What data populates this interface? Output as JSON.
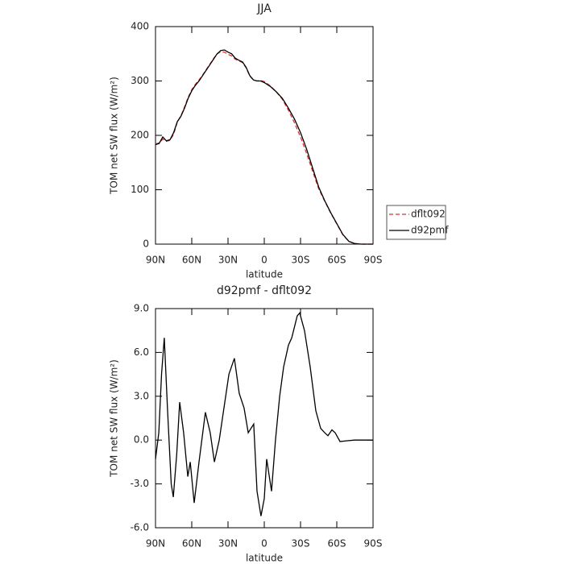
{
  "chart_data": [
    {
      "type": "line",
      "title": "JJA",
      "xlabel": "latitude",
      "ylabel": "TOM net SW flux (W/m²)",
      "x": [
        90,
        87,
        84,
        81,
        78,
        75,
        72,
        69,
        66,
        63,
        60,
        57,
        54,
        51,
        48,
        45,
        42,
        39,
        36,
        33,
        30,
        27,
        24,
        21,
        18,
        15,
        12,
        9,
        6,
        3,
        0,
        -5,
        -10,
        -15,
        -20,
        -25,
        -30,
        -35,
        -40,
        -45,
        -50,
        -55,
        -60,
        -65,
        -70,
        -75,
        -80,
        -85,
        -90
      ],
      "series": [
        {
          "name": "dflt092",
          "color": "#e03030",
          "style": "dashed",
          "values": [
            184,
            186,
            193,
            189,
            191,
            202,
            224,
            236,
            252,
            270,
            284,
            294,
            302,
            311,
            321,
            331,
            341,
            350,
            354,
            353,
            349,
            346,
            340,
            337,
            334,
            324,
            309,
            302,
            300,
            301,
            299,
            291,
            280,
            266,
            246,
            223,
            197,
            167,
            134,
            102,
            79,
            57,
            37,
            17,
            5,
            1,
            0,
            0,
            0
          ]
        },
        {
          "name": "d92pmf",
          "color": "#000000",
          "style": "solid",
          "values": [
            183,
            185,
            197,
            190,
            192,
            205,
            225,
            235,
            250,
            268,
            282,
            292,
            300,
            310,
            320,
            330,
            340,
            350,
            356,
            357,
            353,
            350,
            342,
            338,
            335,
            325,
            310,
            302,
            300,
            300,
            297,
            290,
            280,
            268,
            250,
            230,
            205,
            175,
            140,
            105,
            80,
            58,
            38,
            18,
            5,
            1,
            0,
            0,
            0
          ]
        }
      ],
      "xlim": [
        90,
        -90
      ],
      "xticks": [
        {
          "value": 90,
          "label": "90N"
        },
        {
          "value": 60,
          "label": "60N"
        },
        {
          "value": 30,
          "label": "30N"
        },
        0,
        {
          "value": -30,
          "label": "30S"
        },
        {
          "value": -60,
          "label": "60S"
        },
        {
          "value": -90,
          "label": "90S"
        }
      ],
      "ylim": [
        0,
        400
      ],
      "yticks": [
        0,
        100,
        200,
        300,
        400
      ],
      "legend": "right"
    },
    {
      "type": "line",
      "title": "d92pmf - dflt092",
      "xlabel": "latitude",
      "ylabel": "TOM net SW flux (W/m²)",
      "x": [
        90,
        87.3,
        85,
        82.7,
        80,
        77,
        75.3,
        72.5,
        70,
        66.7,
        63.3,
        61.3,
        58,
        54,
        48.7,
        44.7,
        41.3,
        37.3,
        29.3,
        24.7,
        20.7,
        16.7,
        13.3,
        8.7,
        6,
        2.7,
        0,
        -2,
        -6,
        -9.3,
        -12.7,
        -16,
        -20,
        -22.7,
        -27.3,
        -29.3,
        -33.3,
        -38,
        -42.7,
        -46.7,
        -50,
        -52.7,
        -56,
        -58.7,
        -62.7,
        -68,
        -74.7,
        -90
      ],
      "values": [
        -1.3,
        0.5,
        4.5,
        7.0,
        2.0,
        -3.0,
        -3.9,
        -1.0,
        2.6,
        0.5,
        -2.5,
        -1.5,
        -4.3,
        -1.5,
        1.9,
        0.5,
        -1.5,
        0.0,
        4.5,
        5.6,
        3.2,
        2.2,
        0.5,
        1.1,
        -3.5,
        -5.2,
        -4.0,
        -1.3,
        -3.5,
        0.0,
        3.0,
        5.0,
        6.5,
        7.0,
        8.5,
        8.7,
        7.5,
        5.0,
        2.0,
        0.8,
        0.5,
        0.3,
        0.7,
        0.5,
        -0.1,
        -0.05,
        0.0,
        0.0
      ],
      "color": "#000000",
      "xlim": [
        90,
        -90
      ],
      "xticks": [
        {
          "value": 90,
          "label": "90N"
        },
        {
          "value": 60,
          "label": "60N"
        },
        {
          "value": 30,
          "label": "30N"
        },
        0,
        {
          "value": -30,
          "label": "30S"
        },
        {
          "value": -60,
          "label": "60S"
        },
        {
          "value": -90,
          "label": "90S"
        }
      ],
      "ylim": [
        -6,
        9
      ],
      "yticks": [
        {
          "value": -6,
          "label": "-6.0"
        },
        {
          "value": -3,
          "label": "-3.0"
        },
        {
          "value": 0,
          "label": "0.0"
        },
        {
          "value": 3,
          "label": "3.0"
        },
        {
          "value": 6,
          "label": "6.0"
        },
        {
          "value": 9,
          "label": "9.0"
        }
      ]
    }
  ]
}
